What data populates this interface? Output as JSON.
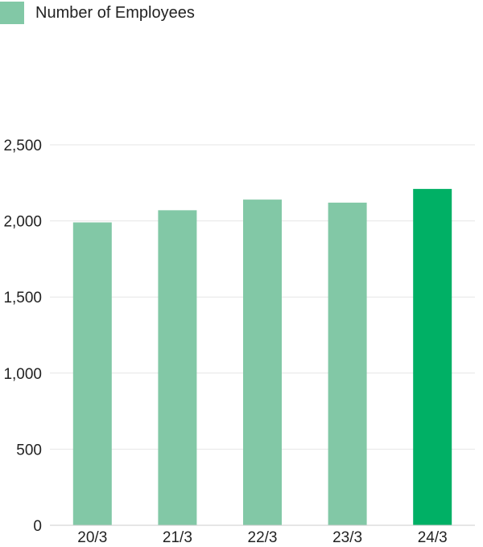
{
  "legend": {
    "label": "Number of Employees",
    "color": "#82c8a6"
  },
  "colors": {
    "bar": "#82c8a6",
    "highlight": "#00b065",
    "grid": "#e6e6e6",
    "axis": "#cccccc"
  },
  "chart_data": {
    "type": "bar",
    "title": "",
    "xlabel": "",
    "ylabel": "",
    "categories": [
      "20/3",
      "21/3",
      "22/3",
      "23/3",
      "24/3"
    ],
    "series": [
      {
        "name": "Number of Employees",
        "values": [
          1990,
          2070,
          2140,
          2120,
          2210
        ]
      }
    ],
    "highlighted_category": "24/3",
    "ylim": [
      0,
      2500
    ],
    "yticks": [
      {
        "value": 0,
        "label": "0"
      },
      {
        "value": 500,
        "label": "500"
      },
      {
        "value": 1000,
        "label": "1,000"
      },
      {
        "value": 1500,
        "label": "1,500"
      },
      {
        "value": 2000,
        "label": "2,000"
      },
      {
        "value": 2500,
        "label": "2,500"
      }
    ],
    "grid": true,
    "legend_position": "top-left"
  }
}
